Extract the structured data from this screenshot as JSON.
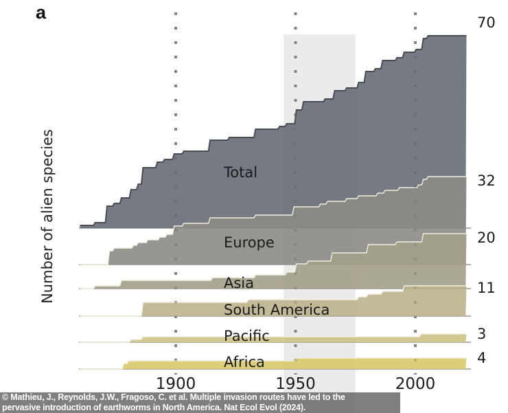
{
  "chart_data": {
    "type": "area",
    "panel_label": "a",
    "ylabel": "Number of alien species",
    "xlabel": "",
    "x_ticks": [
      1900,
      1950,
      2000
    ],
    "xlim": [
      1860,
      2021
    ],
    "highlight_band": [
      1945,
      1975
    ],
    "grid": "vertical dotted lines at ticks",
    "layout": "ridgeline (stacked separate baselines)",
    "series": [
      {
        "name": "Total",
        "end_label": "70",
        "color": "#676b76",
        "steps": [
          [
            1860,
            1
          ],
          [
            1866,
            2
          ],
          [
            1871,
            8
          ],
          [
            1874,
            9
          ],
          [
            1877,
            11
          ],
          [
            1881,
            14
          ],
          [
            1884,
            16
          ],
          [
            1886,
            22
          ],
          [
            1892,
            24
          ],
          [
            1895,
            25
          ],
          [
            1899,
            27
          ],
          [
            1903,
            28
          ],
          [
            1914,
            32
          ],
          [
            1922,
            33
          ],
          [
            1933,
            36
          ],
          [
            1943,
            37
          ],
          [
            1946,
            38
          ],
          [
            1950,
            43
          ],
          [
            1953,
            46
          ],
          [
            1962,
            47
          ],
          [
            1966,
            50
          ],
          [
            1971,
            51
          ],
          [
            1976,
            53
          ],
          [
            1979,
            57
          ],
          [
            1983,
            58
          ],
          [
            1986,
            61
          ],
          [
            1992,
            62
          ],
          [
            1995,
            64
          ],
          [
            2000,
            65
          ],
          [
            2003,
            69
          ],
          [
            2005,
            70
          ],
          [
            2021,
            70
          ]
        ]
      },
      {
        "name": "Europe",
        "end_label": "32",
        "color": "#8c8b86",
        "steps": [
          [
            1860,
            0
          ],
          [
            1870,
            0
          ],
          [
            1872,
            5
          ],
          [
            1874,
            6
          ],
          [
            1882,
            7
          ],
          [
            1884,
            8
          ],
          [
            1888,
            9
          ],
          [
            1893,
            10
          ],
          [
            1896,
            11
          ],
          [
            1899,
            14
          ],
          [
            1903,
            15
          ],
          [
            1914,
            17
          ],
          [
            1933,
            18
          ],
          [
            1949,
            21
          ],
          [
            1960,
            22
          ],
          [
            1963,
            23
          ],
          [
            1971,
            24
          ],
          [
            1976,
            25
          ],
          [
            1984,
            26
          ],
          [
            1987,
            27
          ],
          [
            1993,
            28
          ],
          [
            2001,
            29
          ],
          [
            2003,
            31
          ],
          [
            2005,
            32
          ],
          [
            2021,
            32
          ]
        ]
      },
      {
        "name": "Asia",
        "end_label": "20",
        "color": "#a29e88",
        "steps": [
          [
            1860,
            0
          ],
          [
            1866,
            1
          ],
          [
            1877,
            3
          ],
          [
            1915,
            4
          ],
          [
            1933,
            5
          ],
          [
            1946,
            6
          ],
          [
            1950,
            9
          ],
          [
            1955,
            10
          ],
          [
            1965,
            13
          ],
          [
            1980,
            16
          ],
          [
            1992,
            17
          ],
          [
            2003,
            20
          ],
          [
            2021,
            20
          ]
        ]
      },
      {
        "name": "South America",
        "end_label": "11",
        "color": "#bcb28c",
        "steps": [
          [
            1860,
            0
          ],
          [
            1882,
            0
          ],
          [
            1886,
            5
          ],
          [
            1930,
            6
          ],
          [
            1976,
            7
          ],
          [
            1980,
            8
          ],
          [
            1986,
            9
          ],
          [
            1995,
            11
          ],
          [
            2021,
            11
          ]
        ]
      },
      {
        "name": "Pacific",
        "end_label": "3",
        "color": "#cdc385",
        "steps": [
          [
            1860,
            0
          ],
          [
            1881,
            1
          ],
          [
            1886,
            2
          ],
          [
            2002,
            3
          ],
          [
            2021,
            3
          ]
        ]
      },
      {
        "name": "Africa",
        "end_label": "4",
        "color": "#d9ca6c",
        "steps": [
          [
            1860,
            0
          ],
          [
            1877,
            0
          ],
          [
            1878,
            2
          ],
          [
            1880,
            3
          ],
          [
            1950,
            4
          ],
          [
            2021,
            4
          ]
        ]
      }
    ]
  },
  "caption": {
    "line1": "© Mathieu, J., Reynolds, J.W., Fragoso, C. et al. Multiple invasion routes have led to the",
    "line2": "pervasive introduction of earthworms in North America. Nat Ecol Evol (2024)."
  }
}
